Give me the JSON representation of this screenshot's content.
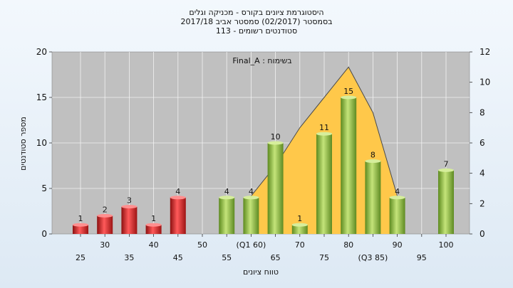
{
  "chart_data": {
    "type": "bar",
    "title_lines": [
      "היסטוגרמת ציונים בקורס - מכניקה וגלים",
      "בסמסטר (02/2017) סמסטר אביב 2017/18",
      "סטודנטים רשומים - 113"
    ],
    "annotation": "בשימוח : Final_A",
    "xlabel": "טווח ציונים",
    "ylabel": "מספר סטודנטים",
    "ylim": [
      0,
      20
    ],
    "y_ticks": [
      0,
      5,
      10,
      15,
      20
    ],
    "y2lim": [
      0,
      12
    ],
    "y2_ticks": [
      0,
      2,
      4,
      6,
      8,
      10,
      12
    ],
    "grid": true,
    "categories": [
      "25",
      "30",
      "35",
      "40",
      "45",
      "50",
      "55",
      "(Q1 60)",
      "65",
      "70",
      "75",
      "80",
      "(Q3 85)",
      "90",
      "95",
      "100"
    ],
    "values": [
      1,
      2,
      3,
      1,
      4,
      0,
      4,
      4,
      10,
      1,
      11,
      15,
      8,
      4,
      0,
      7
    ],
    "value_labels": [
      "1",
      "2",
      "3",
      "1",
      "4",
      "",
      "4",
      "4",
      "10",
      "1",
      "11",
      "15",
      "8",
      "4",
      "",
      "7"
    ],
    "bar_groups": [
      "fail",
      "fail",
      "fail",
      "fail",
      "fail",
      "fail",
      "pass",
      "pass",
      "pass",
      "pass",
      "pass",
      "pass",
      "pass",
      "pass",
      "pass",
      "pass"
    ],
    "area_series": {
      "axis": "y2",
      "x": [
        "(Q1 60)",
        "65",
        "70",
        "75",
        "80",
        "(Q3 85)",
        "90"
      ],
      "values": [
        2.5,
        4.5,
        7,
        9,
        11,
        8,
        2.5
      ]
    },
    "colors": {
      "fail_bar": "#d93030",
      "pass_bar": "#97c24a",
      "area_fill": "#ffc84a",
      "plot_bg": "#c0c0c0"
    }
  }
}
